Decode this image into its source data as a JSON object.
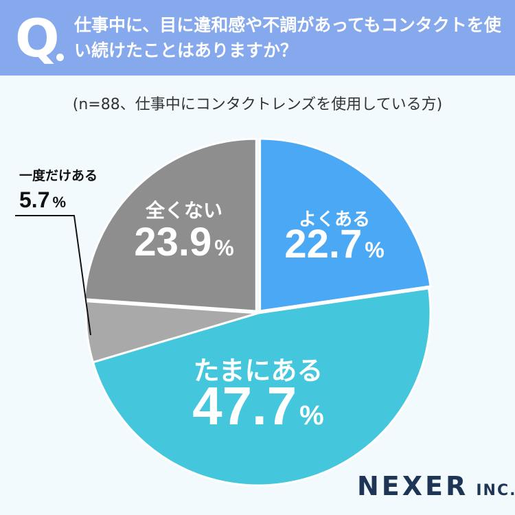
{
  "header": {
    "q_mark": "Q",
    "question": "仕事中に、目に違和感や不調があってもコンタクトを使い続けたことはありますか？"
  },
  "subtitle": "(n=88、仕事中にコンタクトレンズを使用している方)",
  "brand": {
    "main": "NEXER",
    "sub": "INC."
  },
  "colors": {
    "header": "#86a8ec",
    "background": "#f2fafd",
    "often": "#4aa8f5",
    "sometimes": "#44c7dc",
    "once": "#a9a9a9",
    "never": "#8e8e8e"
  },
  "chart_data": {
    "type": "pie",
    "start": "12 o'clock, clockwise",
    "slices": [
      {
        "label": "よくある",
        "value": 22.7,
        "value_text": "22.7",
        "unit": "%",
        "color": "#4aa8f5",
        "exploded": true
      },
      {
        "label": "たまにある",
        "value": 47.7,
        "value_text": "47.7",
        "unit": "%",
        "color": "#44c7dc",
        "exploded": false
      },
      {
        "label": "一度だけある",
        "value": 5.7,
        "value_text": "5.7",
        "unit": "%",
        "color": "#a9a9a9",
        "exploded": false,
        "callout": true
      },
      {
        "label": "全くない",
        "value": 23.9,
        "value_text": "23.9",
        "unit": "%",
        "color": "#8e8e8e",
        "exploded": true
      }
    ]
  }
}
